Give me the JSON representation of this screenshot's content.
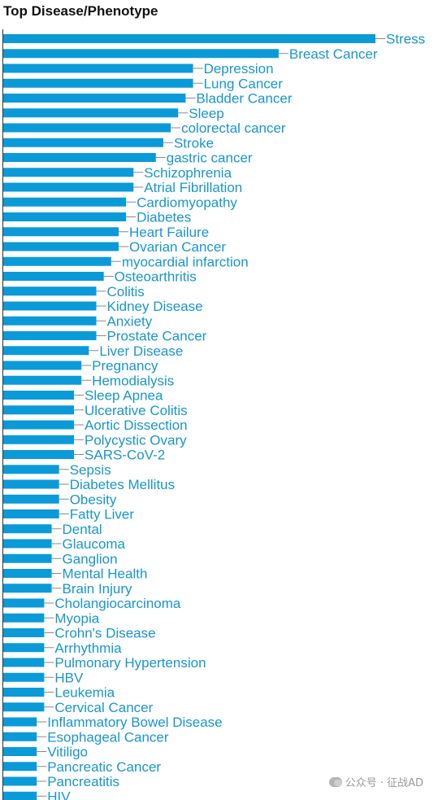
{
  "chart_data": {
    "type": "bar",
    "orientation": "horizontal",
    "title": "Top Disease/Phenotype",
    "xlabel": "",
    "ylabel": "",
    "grid": false,
    "bar_color": "#0b9ad8",
    "label_color": "#1896d0",
    "categories": [
      "Stress",
      "Breast Cancer",
      "Depression",
      "Lung Cancer",
      "Bladder Cancer",
      "Sleep",
      "colorectal cancer",
      "Stroke",
      "gastric cancer",
      "Schizophrenia",
      "Atrial Fibrillation",
      "Cardiomyopathy",
      "Diabetes",
      "Heart Failure",
      "Ovarian Cancer",
      "myocardial infarction",
      "Osteoarthritis",
      "Colitis",
      "Kidney Disease",
      "Anxiety",
      "Prostate Cancer",
      "Liver Disease",
      "Pregnancy",
      "Hemodialysis",
      "Sleep Apnea",
      "Ulcerative Colitis",
      "Aortic Dissection",
      "Polycystic Ovary",
      "SARS-CoV-2",
      "Sepsis",
      "Diabetes Mellitus",
      "Obesity",
      "Fatty Liver",
      "Dental",
      "Glaucoma",
      "Ganglion",
      "Mental Health",
      "Brain Injury",
      "Cholangiocarcinoma",
      "Myopia",
      "Crohn's Disease",
      "Arrhythmia",
      "Pulmonary Hypertension",
      "HBV",
      "Leukemia",
      "Cervical Cancer",
      "Inflammatory Bowel Disease",
      "Esophageal Cancer",
      "Vitiligo",
      "Pancreatic Cancer",
      "Pancreatitis",
      "HIV"
    ],
    "values": [
      50,
      37,
      25.5,
      25.5,
      24.5,
      23.5,
      22.5,
      21.5,
      20.5,
      17.5,
      17.5,
      16.5,
      16.5,
      15.5,
      15.5,
      14.5,
      13.5,
      12.5,
      12.5,
      12.5,
      12.5,
      11.5,
      10.5,
      10.5,
      9.5,
      9.5,
      9.5,
      9.5,
      9.5,
      7.5,
      7.5,
      7.5,
      7.5,
      6.5,
      6.5,
      6.5,
      6.5,
      6.5,
      5.5,
      5.5,
      5.5,
      5.5,
      5.5,
      5.5,
      5.5,
      5.5,
      4.5,
      4.5,
      4.5,
      4.5,
      4.5,
      4.5
    ]
  },
  "watermark": {
    "icon": "wechat-icon",
    "text": "公众号 · 征战AD"
  }
}
